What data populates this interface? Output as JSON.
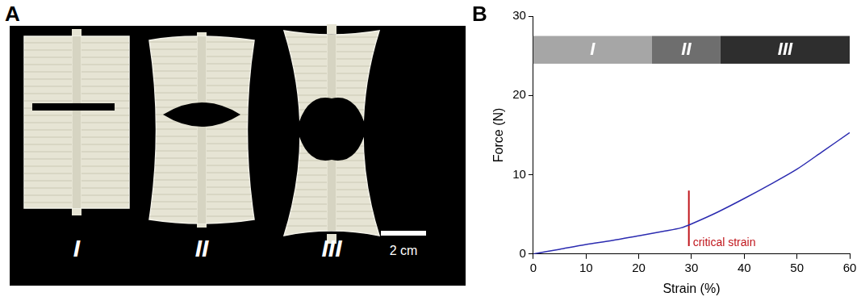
{
  "panel_a": {
    "label": "A",
    "specimens": [
      "I",
      "II",
      "III"
    ],
    "scale_bar": "2 cm"
  },
  "chart_data": {
    "type": "line",
    "panel_label": "B",
    "x_label": "Strain (%)",
    "y_label": "Force (N)",
    "x": [
      0,
      5,
      10,
      15,
      20,
      25,
      28,
      30,
      35,
      40,
      45,
      50,
      55,
      60
    ],
    "values": [
      0,
      0.6,
      1.2,
      1.7,
      2.3,
      2.9,
      3.3,
      3.8,
      5.3,
      7.0,
      8.8,
      10.7,
      13.0,
      15.3
    ],
    "color": "#2b2bb0",
    "xlim": [
      0,
      60
    ],
    "ylim": [
      0,
      30
    ],
    "xticks": [
      0,
      10,
      20,
      30,
      40,
      50,
      60
    ],
    "yticks": [
      0,
      10,
      20,
      30
    ],
    "grid": false,
    "phases": [
      {
        "label": "I",
        "start": 0,
        "end": 22.5,
        "color": "#a6a6a6"
      },
      {
        "label": "II",
        "start": 22.5,
        "end": 35.5,
        "color": "#6e6e6e"
      },
      {
        "label": "III",
        "start": 35.5,
        "end": 60,
        "color": "#2e2e2e"
      }
    ],
    "phase_band": [
      24,
      27.5
    ],
    "annotations": [
      {
        "text": "critical strain",
        "x": 29.5,
        "y": [
          1,
          8
        ],
        "color": "#c0151b"
      }
    ]
  }
}
